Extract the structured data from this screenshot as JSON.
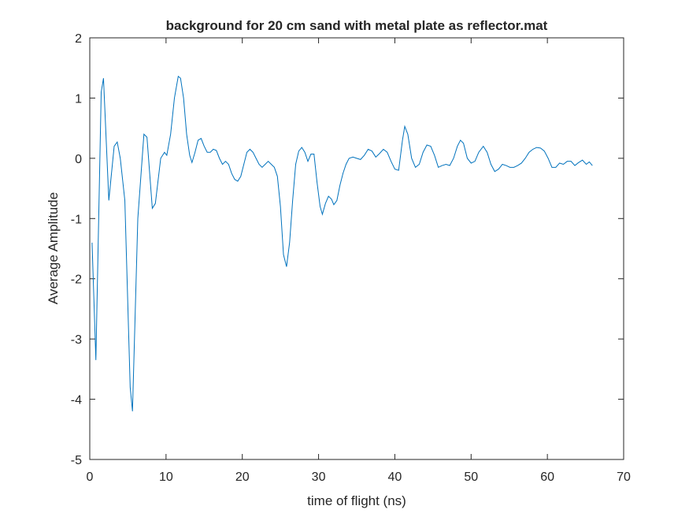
{
  "chart_data": {
    "type": "line",
    "title": "background for 20 cm sand with metal plate as reflector.mat",
    "x_label": "time of flight (ns)",
    "y_label": "Average Amplitude",
    "xlim": [
      0,
      70
    ],
    "ylim": [
      -5,
      2
    ],
    "xticks": [
      0,
      10,
      20,
      30,
      40,
      50,
      60,
      70
    ],
    "yticks": [
      -5,
      -4,
      -3,
      -2,
      -1,
      0,
      1,
      2
    ],
    "grid": false,
    "series": [
      {
        "color": "#0072bd",
        "x": [
          0.3,
          0.8,
          1.5,
          1.8,
          2.5,
          3.2,
          3.6,
          4.0,
          4.6,
          5.3,
          5.6,
          6.3,
          7.1,
          7.5,
          8.2,
          8.6,
          9.3,
          9.8,
          10.1,
          10.6,
          11.1,
          11.6,
          11.9,
          12.3,
          12.7,
          13.1,
          13.4,
          13.8,
          14.2,
          14.6,
          15.0,
          15.4,
          15.8,
          16.2,
          16.6,
          17.0,
          17.4,
          17.8,
          18.2,
          18.6,
          19.0,
          19.4,
          19.8,
          20.2,
          20.6,
          21.0,
          21.4,
          21.8,
          22.2,
          22.6,
          23.0,
          23.4,
          23.8,
          24.2,
          24.6,
          25.0,
          25.4,
          25.8,
          26.2,
          26.6,
          27.0,
          27.4,
          27.8,
          28.2,
          28.6,
          29.0,
          29.4,
          29.8,
          30.2,
          30.5,
          30.9,
          31.3,
          31.7,
          32.0,
          32.4,
          32.8,
          33.2,
          33.6,
          34.0,
          34.5,
          35.0,
          35.5,
          36.0,
          36.5,
          37.0,
          37.5,
          38.0,
          38.5,
          39.0,
          39.5,
          40.0,
          40.5,
          41.0,
          41.3,
          41.7,
          42.2,
          42.7,
          43.2,
          43.7,
          44.2,
          44.7,
          45.2,
          45.7,
          46.2,
          46.7,
          47.2,
          47.7,
          48.2,
          48.6,
          49.0,
          49.5,
          50.0,
          50.5,
          51.0,
          51.6,
          52.1,
          52.6,
          53.1,
          53.6,
          54.1,
          54.6,
          55.1,
          55.6,
          56.1,
          56.6,
          57.1,
          57.6,
          58.1,
          58.6,
          59.1,
          59.6,
          60.1,
          60.6,
          61.1,
          61.6,
          62.1,
          62.6,
          63.1,
          63.6,
          64.1,
          64.6,
          65.1,
          65.5,
          65.9
        ],
        "values": [
          -1.4,
          -3.35,
          1.1,
          1.33,
          -0.7,
          0.2,
          0.27,
          0,
          -0.7,
          -3.8,
          -4.2,
          -1.0,
          0.4,
          0.35,
          -0.83,
          -0.75,
          0,
          0.1,
          0.05,
          0.4,
          1.0,
          1.36,
          1.33,
          1.0,
          0.4,
          0.05,
          -0.07,
          0.1,
          0.3,
          0.33,
          0.2,
          0.1,
          0.1,
          0.15,
          0.13,
          0,
          -0.1,
          -0.05,
          -0.1,
          -0.25,
          -0.35,
          -0.38,
          -0.3,
          -0.1,
          0.1,
          0.15,
          0.1,
          0,
          -0.1,
          -0.15,
          -0.1,
          -0.05,
          -0.1,
          -0.15,
          -0.3,
          -0.8,
          -1.6,
          -1.8,
          -1.4,
          -0.7,
          -0.1,
          0.12,
          0.18,
          0.1,
          -0.05,
          0.07,
          0.07,
          -0.4,
          -0.8,
          -0.93,
          -0.75,
          -0.63,
          -0.68,
          -0.77,
          -0.7,
          -0.45,
          -0.25,
          -0.1,
          0,
          0.02,
          0,
          -0.02,
          0.05,
          0.15,
          0.12,
          0.02,
          0.08,
          0.15,
          0.1,
          -0.05,
          -0.18,
          -0.2,
          0.3,
          0.53,
          0.4,
          0,
          -0.15,
          -0.1,
          0.1,
          0.22,
          0.2,
          0.05,
          -0.15,
          -0.12,
          -0.1,
          -0.12,
          0,
          0.2,
          0.3,
          0.25,
          0,
          -0.08,
          -0.05,
          0.1,
          0.2,
          0.1,
          -0.1,
          -0.22,
          -0.18,
          -0.1,
          -0.12,
          -0.15,
          -0.15,
          -0.12,
          -0.08,
          0,
          0.1,
          0.15,
          0.18,
          0.17,
          0.12,
          0,
          -0.15,
          -0.15,
          -0.08,
          -0.1,
          -0.05,
          -0.05,
          -0.12,
          -0.07,
          -0.03,
          -0.1,
          -0.06,
          -0.12
        ]
      }
    ]
  }
}
